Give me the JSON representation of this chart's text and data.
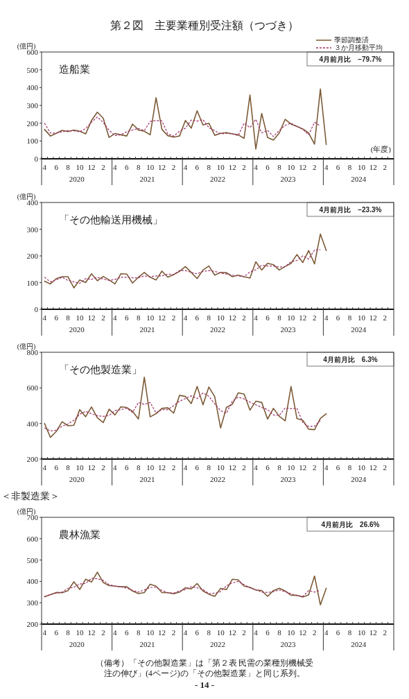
{
  "chart_data": [
    {
      "type": "line",
      "title": "第２図　主要業種別受注額（つづき）",
      "subtitle": "造船業",
      "xlabel": "(年度)",
      "ylabel": "(億円)",
      "legend": "top right",
      "categories": [
        "4",
        null,
        "6",
        null,
        "8",
        null,
        "10",
        null,
        "12",
        null,
        "2",
        null,
        "4",
        null,
        "6",
        null,
        "8",
        null,
        "10",
        null,
        "12",
        null,
        "2",
        null,
        "4",
        null,
        "6",
        null,
        "8",
        null,
        "10",
        null,
        "12",
        null,
        "2",
        null,
        "4",
        null,
        "6",
        null,
        "8",
        null,
        "10",
        null,
        "12",
        null,
        "2",
        null,
        "4",
        null,
        "6",
        null,
        "8",
        null,
        "10",
        null,
        "12",
        null,
        "2",
        null
      ],
      "ylim": [
        0,
        600
      ],
      "yticks": [
        0,
        100,
        200,
        300,
        400,
        500,
        600
      ],
      "series": [
        {
          "name": "季節調整済",
          "color": "#7b5a36",
          "line_style": "solid",
          "values": [
            165,
            128,
            143,
            160,
            153,
            162,
            155,
            140,
            215,
            262,
            228,
            120,
            142,
            135,
            128,
            195,
            162,
            155,
            135,
            343,
            165,
            130,
            122,
            128,
            215,
            172,
            270,
            190,
            200,
            132,
            143,
            147,
            140,
            135,
            115,
            358,
            55,
            255,
            120,
            105,
            145,
            222,
            195,
            182,
            168,
            145,
            82,
            392,
            80,
            null,
            null,
            null,
            null,
            null,
            null,
            null,
            null,
            null,
            null,
            null
          ]
        },
        {
          "name": "３か月移動平均",
          "color": "#a0306a",
          "line_style": "dashed",
          "values": [
            200,
            145,
            145,
            152,
            158,
            157,
            152,
            170,
            205,
            235,
            205,
            160,
            130,
            135,
            152,
            162,
            170,
            158,
            210,
            215,
            213,
            140,
            127,
            155,
            172,
            218,
            212,
            220,
            175,
            158,
            140,
            143,
            140,
            130,
            200,
            175,
            222,
            145,
            160,
            125,
            160,
            188,
            200,
            182,
            165,
            135,
            205,
            185,
            null,
            null,
            null,
            null,
            null,
            null,
            null,
            null,
            null,
            null,
            null,
            null
          ]
        }
      ],
      "annotations": [
        "4月前月比　−79.7%",
        "2020",
        "2021",
        "2022",
        "2023",
        "2024"
      ]
    },
    {
      "type": "line",
      "subtitle": "「その他輸送用機械」",
      "ylabel": "(億円)",
      "categories": [
        "4",
        null,
        "6",
        null,
        "8",
        null,
        "10",
        null,
        "12",
        null,
        "2",
        null,
        "4",
        null,
        "6",
        null,
        "8",
        null,
        "10",
        null,
        "12",
        null,
        "2",
        null,
        "4",
        null,
        "6",
        null,
        "8",
        null,
        "10",
        null,
        "12",
        null,
        "2",
        null,
        "4",
        null,
        "6",
        null,
        "8",
        null,
        "10",
        null,
        "12",
        null,
        "2",
        null,
        "4",
        null,
        "6",
        null,
        "8",
        null,
        "10",
        null,
        "12",
        null,
        "2",
        null
      ],
      "ylim": [
        0,
        400
      ],
      "yticks": [
        0,
        100,
        200,
        300,
        400
      ],
      "series": [
        {
          "color": "#7b5a36",
          "line_style": "solid",
          "values": [
            105,
            95,
            115,
            122,
            122,
            80,
            110,
            100,
            133,
            107,
            123,
            110,
            95,
            133,
            132,
            98,
            120,
            138,
            120,
            110,
            143,
            120,
            130,
            142,
            160,
            138,
            115,
            147,
            162,
            128,
            138,
            137,
            122,
            128,
            122,
            117,
            178,
            147,
            172,
            167,
            147,
            160,
            172,
            205,
            175,
            220,
            170,
            282,
            220,
            null,
            null,
            null,
            null,
            null,
            null,
            null,
            null,
            null,
            null,
            null
          ]
        },
        {
          "color": "#a0306a",
          "line_style": "dashed",
          "values": [
            120,
            103,
            110,
            120,
            108,
            103,
            97,
            115,
            112,
            120,
            113,
            108,
            112,
            120,
            120,
            118,
            118,
            125,
            122,
            125,
            125,
            132,
            130,
            145,
            145,
            138,
            133,
            142,
            145,
            142,
            135,
            132,
            128,
            125,
            122,
            140,
            148,
            165,
            162,
            162,
            158,
            160,
            178,
            183,
            200,
            188,
            222,
            223,
            null,
            null,
            null,
            null,
            null,
            null,
            null,
            null,
            null,
            null,
            null,
            null
          ]
        }
      ],
      "annotations": [
        "4月前月比　−23.3%",
        "2020",
        "2021",
        "2022",
        "2023",
        "2024"
      ]
    },
    {
      "type": "line",
      "subtitle": "「その他製造業」",
      "ylabel": "(億円)",
      "categories": [
        "4",
        null,
        "6",
        null,
        "8",
        null,
        "10",
        null,
        "12",
        null,
        "2",
        null,
        "4",
        null,
        "6",
        null,
        "8",
        null,
        "10",
        null,
        "12",
        null,
        "2",
        null,
        "4",
        null,
        "6",
        null,
        "8",
        null,
        "10",
        null,
        "12",
        null,
        "2",
        null,
        "4",
        null,
        "6",
        null,
        "8",
        null,
        "10",
        null,
        "12",
        null,
        "2",
        null,
        "4",
        null,
        "6",
        null,
        "8",
        null,
        "10",
        null,
        "12",
        null,
        "2",
        null
      ],
      "ylim": [
        200,
        800
      ],
      "yticks": [
        200,
        400,
        600,
        800
      ],
      "series": [
        {
          "color": "#7b5a36",
          "line_style": "solid",
          "values": [
            400,
            322,
            355,
            410,
            387,
            390,
            478,
            438,
            493,
            432,
            405,
            480,
            448,
            493,
            490,
            468,
            425,
            660,
            437,
            455,
            485,
            488,
            458,
            558,
            552,
            512,
            608,
            505,
            605,
            550,
            375,
            490,
            508,
            572,
            565,
            475,
            525,
            518,
            425,
            485,
            440,
            415,
            608,
            428,
            418,
            368,
            365,
            428,
            455,
            null,
            null,
            null,
            null,
            null,
            null,
            null,
            null,
            null,
            null,
            null
          ]
        },
        {
          "color": "#a0306a",
          "line_style": "dashed",
          "values": [
            375,
            358,
            362,
            385,
            397,
            418,
            452,
            468,
            455,
            443,
            440,
            445,
            472,
            478,
            485,
            462,
            518,
            507,
            518,
            460,
            478,
            478,
            500,
            525,
            540,
            555,
            540,
            572,
            553,
            510,
            472,
            458,
            525,
            548,
            538,
            520,
            505,
            490,
            478,
            448,
            445,
            487,
            483,
            485,
            405,
            383,
            385,
            415,
            null,
            null,
            null,
            null,
            null,
            null,
            null,
            null,
            null,
            null,
            null,
            null
          ]
        }
      ],
      "annotations": [
        "4月前月比　6.3%",
        "2020",
        "2021",
        "2022",
        "2023",
        "2024"
      ]
    },
    {
      "type": "line",
      "title": "＜非製造業＞",
      "subtitle": "農林漁業",
      "ylabel": "(億円)",
      "categories": [
        "4",
        null,
        "6",
        null,
        "8",
        null,
        "10",
        null,
        "12",
        null,
        "2",
        null,
        "4",
        null,
        "6",
        null,
        "8",
        null,
        "10",
        null,
        "12",
        null,
        "2",
        null,
        "4",
        null,
        "6",
        null,
        "8",
        null,
        "10",
        null,
        "12",
        null,
        "2",
        null,
        "4",
        null,
        "6",
        null,
        "8",
        null,
        "10",
        null,
        "12",
        null,
        "2",
        null,
        "4",
        null,
        "6",
        null,
        "8",
        null,
        "10",
        null,
        "12",
        null,
        "2",
        null
      ],
      "ylim": [
        200,
        700
      ],
      "yticks": [
        200,
        300,
        400,
        500,
        600,
        700
      ],
      "series": [
        {
          "color": "#7b5a36",
          "line_style": "solid",
          "values": [
            328,
            338,
            348,
            347,
            357,
            398,
            362,
            410,
            397,
            443,
            395,
            380,
            378,
            375,
            375,
            355,
            343,
            348,
            387,
            378,
            348,
            347,
            342,
            350,
            370,
            365,
            390,
            355,
            340,
            330,
            367,
            362,
            410,
            407,
            378,
            372,
            360,
            357,
            330,
            357,
            368,
            355,
            335,
            335,
            327,
            337,
            425,
            290,
            368,
            null,
            null,
            null,
            null,
            null,
            null,
            null,
            null,
            null,
            null,
            null
          ]
        },
        {
          "color": "#a0306a",
          "line_style": "dashed",
          "values": [
            328,
            338,
            345,
            350,
            368,
            372,
            388,
            390,
            415,
            412,
            405,
            385,
            378,
            375,
            368,
            358,
            350,
            360,
            372,
            372,
            358,
            347,
            345,
            355,
            362,
            375,
            370,
            362,
            343,
            345,
            352,
            380,
            393,
            400,
            385,
            370,
            360,
            350,
            348,
            352,
            360,
            352,
            342,
            333,
            330,
            357,
            350,
            358,
            null,
            null,
            null,
            null,
            null,
            null,
            null,
            null,
            null,
            null,
            null,
            null
          ]
        }
      ],
      "annotations": [
        "4月前月比　26.6%",
        "2020",
        "2021",
        "2022",
        "2023",
        "2024",
        "（備考）「その他製造業」は「第２表 民需の業種別機械受注の伸び」(4ページ)の「その他製造業」と同じ系列。",
        "- 14 -"
      ]
    }
  ]
}
